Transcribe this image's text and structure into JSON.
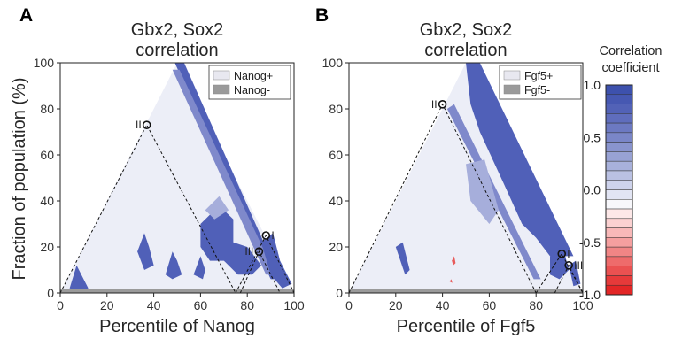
{
  "chart_data": [
    {
      "panel": "A",
      "type": "heatmap",
      "title_lines": [
        "Gbx2, Sox2",
        "correlation"
      ],
      "xlabel": "Percentile of Nanog",
      "ylabel": "Fraction of population (%)",
      "xlim": [
        0,
        100
      ],
      "ylim": [
        0,
        100
      ],
      "xticks": [
        0,
        20,
        40,
        60,
        80,
        100
      ],
      "yticks": [
        0,
        20,
        40,
        60,
        80,
        100
      ],
      "legend": {
        "placement": "top-right",
        "entries": [
          {
            "label": "Nanog+",
            "color": "#e8e8f0"
          },
          {
            "label": "Nanog-",
            "color": "#9a9a9a"
          }
        ]
      },
      "points": [
        {
          "label": "II",
          "x": 37,
          "y": 73
        },
        {
          "label": "I",
          "x": 88,
          "y": 25
        },
        {
          "label": "III",
          "x": 85,
          "y": 18
        }
      ],
      "triangle_apex": {
        "x": 50,
        "y": 100
      },
      "dashed_triangles": [
        {
          "apex": {
            "x": 37,
            "y": 73
          },
          "base": [
            0,
            75
          ]
        },
        {
          "apex": {
            "x": 88,
            "y": 25
          },
          "base": [
            75,
            100
          ]
        },
        {
          "apex": {
            "x": 85,
            "y": 18
          },
          "base": [
            77,
            94
          ]
        }
      ]
    },
    {
      "panel": "B",
      "type": "heatmap",
      "title_lines": [
        "Gbx2, Sox2",
        "correlation"
      ],
      "xlabel": "Percentile of Fgf5",
      "ylabel": "",
      "xlim": [
        0,
        100
      ],
      "ylim": [
        0,
        100
      ],
      "xticks": [
        0,
        20,
        40,
        60,
        80,
        100
      ],
      "yticks": [
        0,
        20,
        40,
        60,
        80,
        100
      ],
      "legend": {
        "placement": "top-right",
        "entries": [
          {
            "label": "Fgf5+",
            "color": "#e8e8f0"
          },
          {
            "label": "Fgf5-",
            "color": "#9a9a9a"
          }
        ]
      },
      "points": [
        {
          "label": "II",
          "x": 40,
          "y": 82
        },
        {
          "label": "I",
          "x": 91,
          "y": 17
        },
        {
          "label": "III",
          "x": 94,
          "y": 12
        }
      ],
      "triangle_apex": {
        "x": 50,
        "y": 100
      },
      "dashed_triangles": [
        {
          "apex": {
            "x": 40,
            "y": 82
          },
          "base": [
            0,
            80
          ]
        },
        {
          "apex": {
            "x": 91,
            "y": 17
          },
          "base": [
            80,
            100
          ]
        },
        {
          "apex": {
            "x": 94,
            "y": 12
          },
          "base": [
            88,
            100
          ]
        }
      ]
    },
    {
      "type": "colorbar",
      "title_lines": [
        "Correlation",
        "coefficient"
      ],
      "range": [
        -1.0,
        1.0
      ],
      "ticks": [
        "1.0",
        "0.5",
        "0.0",
        "-0.5",
        "-1.0"
      ],
      "colors": [
        "#3d51ad",
        "#4658b2",
        "#5262b7",
        "#5f6dbd",
        "#6c79c2",
        "#7a86c8",
        "#8994ce",
        "#98a2d4",
        "#a8b1db",
        "#bac1e3",
        "#ced3ec",
        "#e2e5f4",
        "#f7f7fb",
        "#fde8e8",
        "#fbd1d1",
        "#f8b8b8",
        "#f59f9f",
        "#f18585",
        "#ee6b6b",
        "#ea5151",
        "#e63a3a",
        "#e32626"
      ]
    }
  ],
  "colors": {
    "background_fill": "#eceef7",
    "strong_blue": "#5060b8",
    "mid_blue": "#7f89cb",
    "light_blue": "#a6aedb",
    "red_speck": "#e85a5a",
    "baseline_gray": "#9a9a9a"
  }
}
